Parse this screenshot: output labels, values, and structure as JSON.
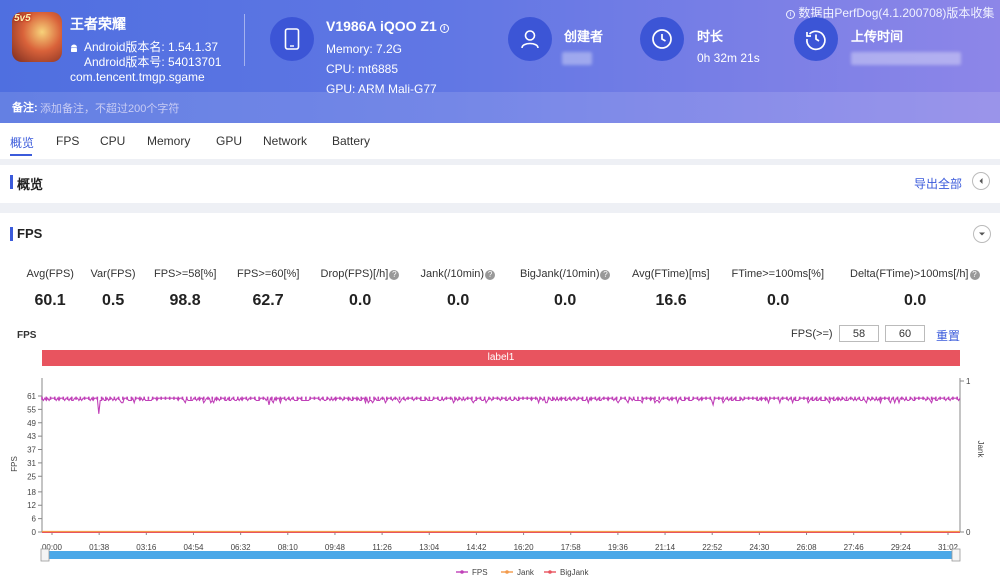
{
  "source_note": "数据由PerfDog(4.1.200708)版本收集",
  "app": {
    "name": "王者荣耀",
    "badge": "5v5",
    "version_name": "Android版本名: 1.54.1.37",
    "version_code": "Android版本号: 54013701",
    "package": "com.tencent.tmgp.sgame"
  },
  "device": {
    "name": "V1986A iQOO Z1",
    "memory": "Memory: 7.2G",
    "cpu": "CPU: mt6885",
    "gpu": "GPU: ARM Mali-G77"
  },
  "creator": {
    "title": "创建者"
  },
  "duration": {
    "title": "时长",
    "value": "0h 32m 21s"
  },
  "upload": {
    "title": "上传时间"
  },
  "note": {
    "label": "备注:",
    "placeholder": "添加备注，不超过200个字符"
  },
  "tabs": [
    "概览",
    "FPS",
    "CPU",
    "Memory",
    "GPU",
    "Network",
    "Battery"
  ],
  "overview": {
    "title": "概览",
    "export_label": "导出全部"
  },
  "fps_section": {
    "title": "FPS"
  },
  "stats": [
    {
      "header": "Avg(FPS)",
      "value": "60.1",
      "help": false
    },
    {
      "header": "Var(FPS)",
      "value": "0.5",
      "help": false
    },
    {
      "header": "FPS>=58[%]",
      "value": "98.8",
      "help": false
    },
    {
      "header": "FPS>=60[%]",
      "value": "62.7",
      "help": false
    },
    {
      "header": "Drop(FPS)[/h]",
      "value": "0.0",
      "help": true
    },
    {
      "header": "Jank(/10min)",
      "value": "0.0",
      "help": true
    },
    {
      "header": "BigJank(/10min)",
      "value": "0.0",
      "help": true
    },
    {
      "header": "Avg(FTime)[ms]",
      "value": "16.6",
      "help": false
    },
    {
      "header": "FTime>=100ms[%]",
      "value": "0.0",
      "help": false
    },
    {
      "header": "Delta(FTime)>100ms[/h]",
      "value": "0.0",
      "help": true
    }
  ],
  "chart_controls": {
    "chart_label": "FPS",
    "threshold_label": "FPS(>=)",
    "threshold_low": "58",
    "threshold_high": "60",
    "reset_label": "重置",
    "label_bar": "label1"
  },
  "colors": {
    "accent": "#3b5bdb",
    "fps": "#c040b8",
    "jank": "#f39a4a",
    "bigjank": "#e8545f",
    "label_bar": "#e8545f",
    "slider": "#4aa8e8"
  },
  "chart_data": {
    "type": "line",
    "ylabel": "FPS",
    "y2label": "Jank",
    "ylim": [
      0,
      61
    ],
    "y2lim": [
      0,
      1
    ],
    "yticks": [
      0,
      6,
      12,
      18,
      25,
      31,
      37,
      43,
      49,
      55,
      61
    ],
    "y2ticks": [
      0,
      1
    ],
    "x_ticks": [
      "00:00",
      "01:38",
      "03:16",
      "04:54",
      "06:32",
      "08:10",
      "09:48",
      "11:26",
      "13:04",
      "14:42",
      "16:20",
      "17:58",
      "19:36",
      "21:14",
      "22:52",
      "24:30",
      "26:08",
      "27:46",
      "29:24",
      "31:02"
    ],
    "x_range_seconds": [
      0,
      1941
    ],
    "series": [
      {
        "name": "FPS",
        "baseline": 60,
        "min": 53,
        "dips": [
          [
            120,
            53
          ],
          [
            170,
            58
          ],
          [
            480,
            57
          ],
          [
            1050,
            58
          ],
          [
            1420,
            57
          ],
          [
            1620,
            58
          ],
          [
            1880,
            58
          ]
        ]
      },
      {
        "name": "Jank",
        "constant": 0
      },
      {
        "name": "BigJank",
        "constant": 0
      }
    ],
    "legend": [
      "FPS",
      "Jank",
      "BigJank"
    ],
    "legend_position": "bottom"
  }
}
